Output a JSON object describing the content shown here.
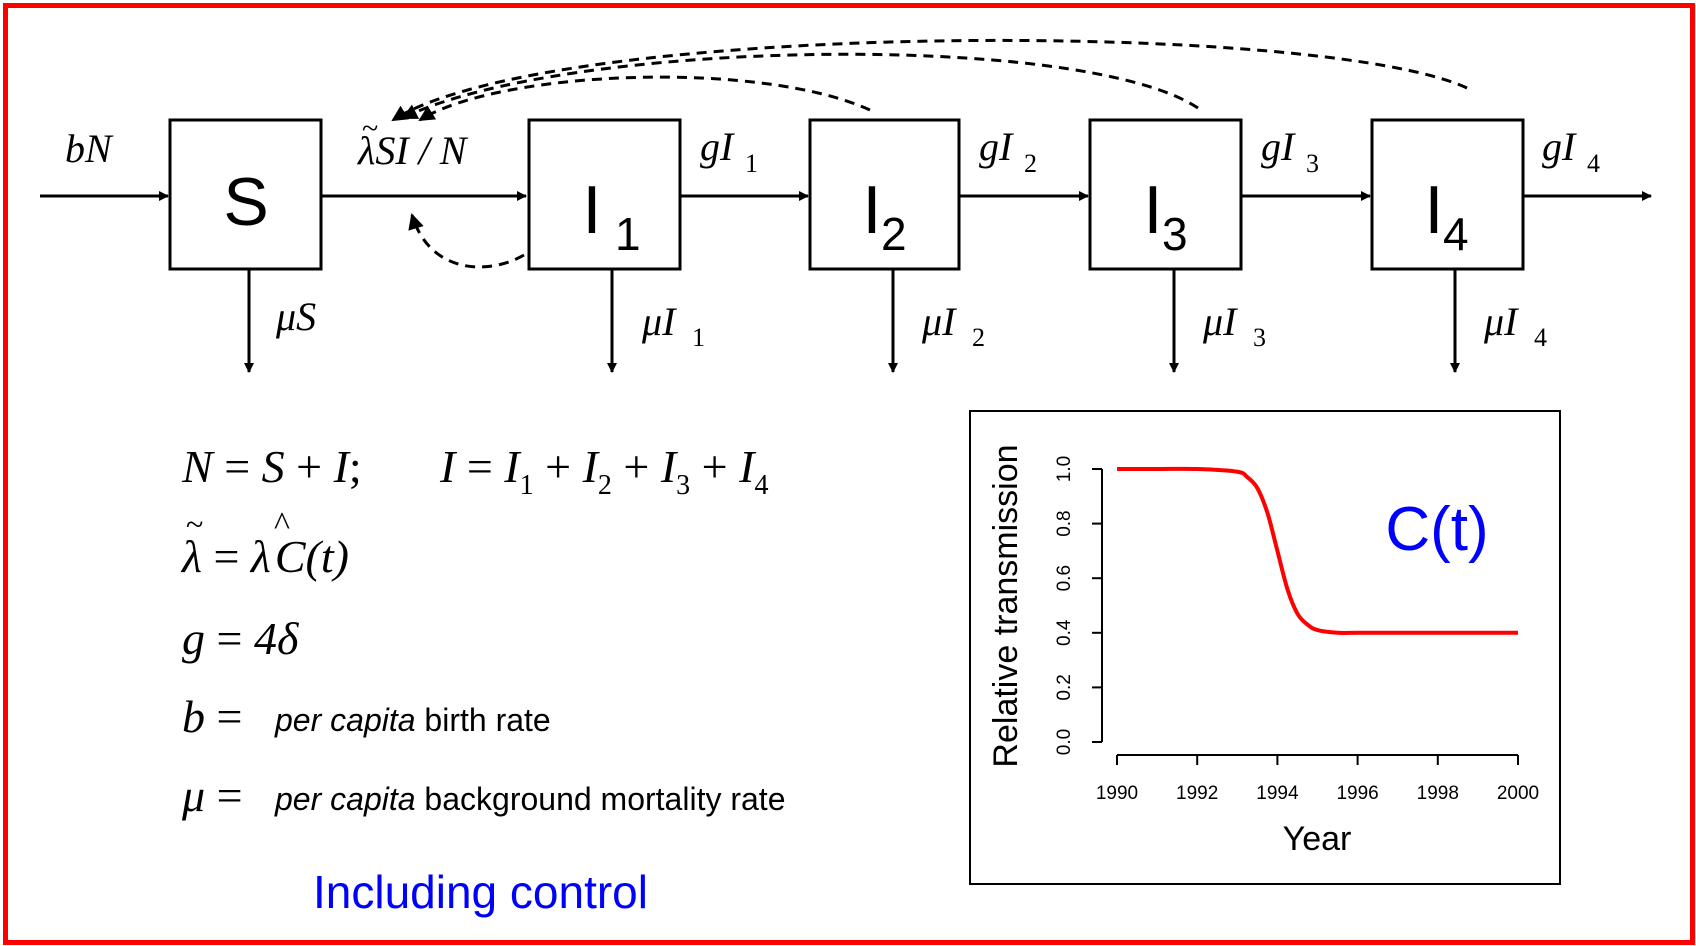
{
  "compartments": [
    {
      "id": "S",
      "letter": "S",
      "sub": ""
    },
    {
      "id": "I1",
      "letter": "I",
      "sub": "1"
    },
    {
      "id": "I2",
      "letter": "I",
      "sub": "2"
    },
    {
      "id": "I3",
      "letter": "I",
      "sub": "3"
    },
    {
      "id": "I4",
      "letter": "I",
      "sub": "4"
    }
  ],
  "flows": {
    "birth": {
      "main": "bN"
    },
    "infection": {
      "tilde": "~",
      "main": "λSI / N"
    },
    "progression": [
      {
        "main": "gI",
        "sub": "1"
      },
      {
        "main": "gI",
        "sub": "2"
      },
      {
        "main": "gI",
        "sub": "3"
      },
      {
        "main": "gI",
        "sub": "4"
      }
    ],
    "mortality": [
      {
        "main": "μS",
        "sub": ""
      },
      {
        "main": "μI",
        "sub": "1"
      },
      {
        "main": "μI",
        "sub": "2"
      },
      {
        "main": "μI",
        "sub": "3"
      },
      {
        "main": "μI",
        "sub": "4"
      }
    ]
  },
  "equations": {
    "eq1": {
      "lhs": "N",
      "eq": " = ",
      "s": "S",
      "plus": " + ",
      "i": "I",
      "semi": ";",
      "i2": "I",
      "eq2": " = ",
      "terms": [
        {
          "v": "I",
          "s": "1"
        },
        {
          "v": "I",
          "s": "2"
        },
        {
          "v": "I",
          "s": "3"
        },
        {
          "v": "I",
          "s": "4"
        }
      ],
      "op": " + "
    },
    "eq2": {
      "lhs": "λ",
      "tilde": "~",
      "eq": " = ",
      "rhs": "λ",
      "hat": "^",
      "rest": "C(t)"
    },
    "eq3": {
      "lhs": "g",
      "eq": " = ",
      "rhs": "4δ"
    },
    "def_b": {
      "sym": "b",
      "eq": " = ",
      "italic": "per capita",
      "rest": " birth rate"
    },
    "def_mu": {
      "sym": "μ",
      "eq": " = ",
      "italic": "per capita",
      "rest": " background mortality rate"
    }
  },
  "caption": "Including control",
  "colors": {
    "frame": "#ff0000",
    "caption": "#0000ff",
    "curve": "#ff0000",
    "chart_title": "#0000ff"
  },
  "chart_data": {
    "type": "line",
    "title": "C(t)",
    "xlabel": "Year",
    "ylabel": "Relative transmission",
    "xlim": [
      1990,
      2000
    ],
    "ylim": [
      0.0,
      1.0
    ],
    "xticks": [
      "1990",
      "1992",
      "1994",
      "1996",
      "1998",
      "2000"
    ],
    "yticks": [
      "0.0",
      "0.2",
      "0.4",
      "0.6",
      "0.8",
      "1.0"
    ],
    "x": [
      1990,
      1991,
      1992,
      1993,
      1993.25,
      1993.5,
      1993.75,
      1994,
      1994.25,
      1994.5,
      1994.75,
      1995,
      1995.5,
      1996,
      1997,
      1998,
      1999,
      2000
    ],
    "series": [
      {
        "values": [
          1.0,
          1.0,
          1.0,
          0.99,
          0.97,
          0.93,
          0.84,
          0.7,
          0.56,
          0.47,
          0.43,
          0.41,
          0.4,
          0.4,
          0.4,
          0.4,
          0.4,
          0.4
        ]
      }
    ],
    "grid": false
  }
}
